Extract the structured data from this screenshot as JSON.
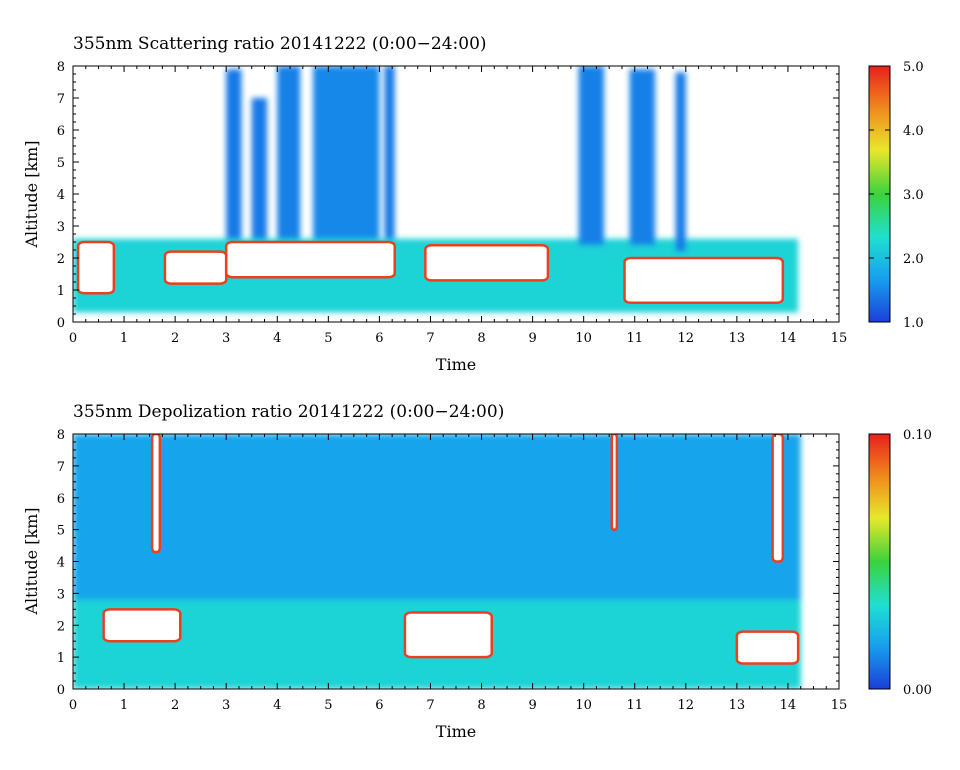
{
  "chart_data": [
    {
      "type": "heatmap",
      "title": "355nm Scattering ratio  20141222 (0:00−24:00)",
      "xlabel": "Time",
      "ylabel": "Altitude [km]",
      "xlim": [
        0,
        15
      ],
      "ylim": [
        0,
        8
      ],
      "xticks": [
        "0",
        "1",
        "2",
        "3",
        "4",
        "5",
        "6",
        "7",
        "8",
        "9",
        "10",
        "11",
        "12",
        "13",
        "14",
        "15"
      ],
      "yticks": [
        "0",
        "1",
        "2",
        "3",
        "4",
        "5",
        "6",
        "7",
        "8"
      ],
      "colorbar": {
        "min": 1.0,
        "max": 5.0,
        "ticks": [
          "1.0",
          "2.0",
          "3.0",
          "4.0",
          "5.0"
        ],
        "tick_values": [
          1.0,
          2.0,
          3.0,
          4.0,
          5.0
        ],
        "colors": [
          "#1a3fd9",
          "#18a0ee",
          "#1ee0d0",
          "#3cd23c",
          "#e8e82a",
          "#f08c1e",
          "#e8201e"
        ]
      },
      "data_extent": [
        0,
        14.25
      ],
      "features": [
        {
          "kind": "layer",
          "x": [
            0,
            14.2
          ],
          "y": [
            0.3,
            2.6
          ],
          "level": 2.2
        },
        {
          "kind": "saturated",
          "x": [
            0.1,
            0.8
          ],
          "y": [
            0.9,
            2.5
          ]
        },
        {
          "kind": "saturated",
          "x": [
            1.8,
            3.0
          ],
          "y": [
            1.2,
            2.2
          ]
        },
        {
          "kind": "saturated",
          "x": [
            3.0,
            6.3
          ],
          "y": [
            1.4,
            2.5
          ]
        },
        {
          "kind": "saturated",
          "x": [
            6.9,
            9.3
          ],
          "y": [
            1.3,
            2.4
          ]
        },
        {
          "kind": "saturated",
          "x": [
            10.8,
            13.9
          ],
          "y": [
            0.6,
            2.0
          ]
        },
        {
          "kind": "column",
          "x": [
            3.0,
            3.3
          ],
          "y": [
            2.6,
            7.9
          ],
          "level": 1.4
        },
        {
          "kind": "column",
          "x": [
            3.5,
            3.8
          ],
          "y": [
            2.6,
            7.0
          ],
          "level": 1.4
        },
        {
          "kind": "column",
          "x": [
            4.0,
            4.45
          ],
          "y": [
            2.6,
            8.0
          ],
          "level": 1.45
        },
        {
          "kind": "column",
          "x": [
            4.7,
            6.0
          ],
          "y": [
            2.6,
            8.0
          ],
          "level": 1.5
        },
        {
          "kind": "column",
          "x": [
            6.1,
            6.3
          ],
          "y": [
            2.6,
            8.0
          ],
          "level": 1.4
        },
        {
          "kind": "column",
          "x": [
            9.9,
            10.4
          ],
          "y": [
            2.4,
            8.0
          ],
          "level": 1.45
        },
        {
          "kind": "column",
          "x": [
            10.9,
            11.4
          ],
          "y": [
            2.4,
            7.9
          ],
          "level": 1.45
        },
        {
          "kind": "column",
          "x": [
            11.8,
            12.0
          ],
          "y": [
            2.2,
            7.8
          ],
          "level": 1.4
        }
      ]
    },
    {
      "type": "heatmap",
      "title": "355nm Depolization ratio  20141222 (0:00−24:00)",
      "xlabel": "Time",
      "ylabel": "Altitude [km]",
      "xlim": [
        0,
        15
      ],
      "ylim": [
        0,
        8
      ],
      "xticks": [
        "0",
        "1",
        "2",
        "3",
        "4",
        "5",
        "6",
        "7",
        "8",
        "9",
        "10",
        "11",
        "12",
        "13",
        "14",
        "15"
      ],
      "yticks": [
        "0",
        "1",
        "2",
        "3",
        "4",
        "5",
        "6",
        "7",
        "8"
      ],
      "colorbar": {
        "min": 0.0,
        "max": 0.1,
        "ticks": [
          "0.00",
          "0.10"
        ],
        "tick_values": [
          0.0,
          0.1
        ],
        "colors": [
          "#1a3fd9",
          "#18a0ee",
          "#1ee0d0",
          "#3cd23c",
          "#e8e82a",
          "#f08c1e",
          "#e8201e"
        ]
      },
      "data_extent": [
        0,
        14.25
      ],
      "features": [
        {
          "kind": "background",
          "x": [
            0,
            14.25
          ],
          "y": [
            0,
            8
          ],
          "level": 0.018
        },
        {
          "kind": "layer",
          "x": [
            0,
            14.25
          ],
          "y": [
            0,
            2.8
          ],
          "level": 0.03
        },
        {
          "kind": "saturated",
          "x": [
            1.55,
            1.7
          ],
          "y": [
            4.3,
            8.0
          ]
        },
        {
          "kind": "saturated",
          "x": [
            10.55,
            10.65
          ],
          "y": [
            5.0,
            8.0
          ]
        },
        {
          "kind": "saturated",
          "x": [
            13.7,
            13.9
          ],
          "y": [
            4.0,
            8.0
          ]
        },
        {
          "kind": "saturated",
          "x": [
            0.6,
            2.1
          ],
          "y": [
            1.5,
            2.5
          ]
        },
        {
          "kind": "saturated",
          "x": [
            6.5,
            8.2
          ],
          "y": [
            1.0,
            2.4
          ]
        },
        {
          "kind": "saturated",
          "x": [
            13.0,
            14.2
          ],
          "y": [
            0.8,
            1.8
          ]
        }
      ]
    }
  ]
}
